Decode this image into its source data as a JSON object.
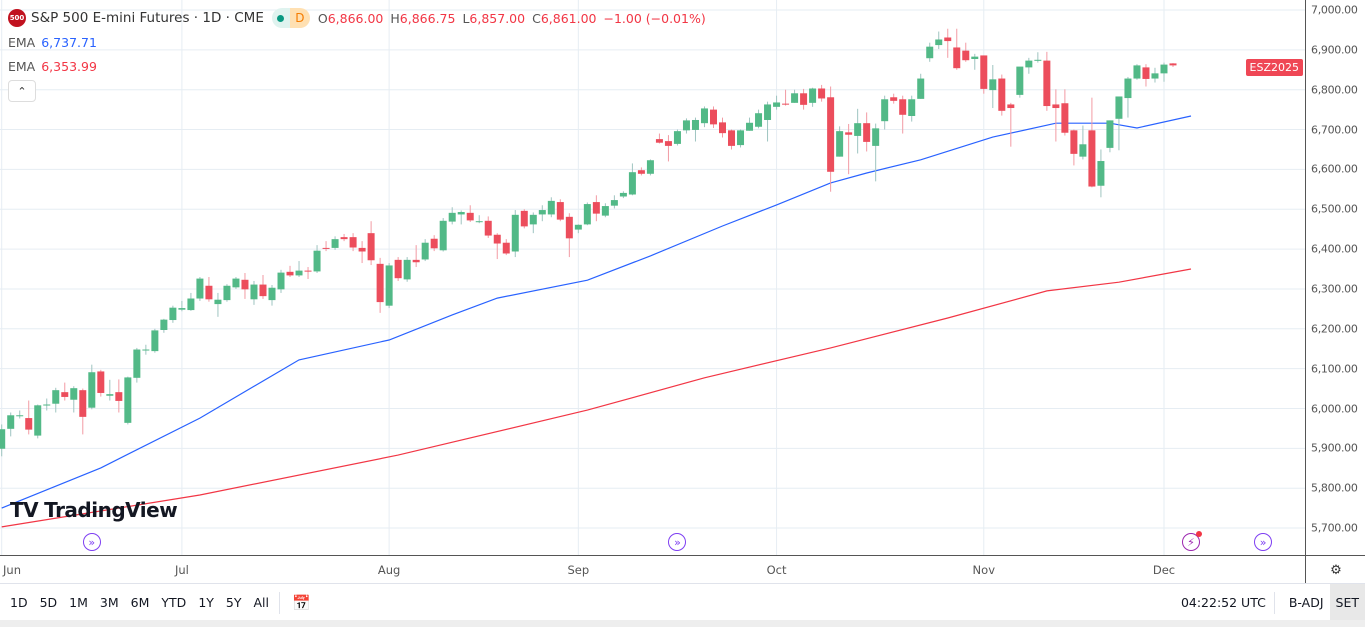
{
  "header": {
    "symbol_logo": "500",
    "title": "S&P 500 E-mini Futures · 1D · CME",
    "interval_badge": "D",
    "ohlc": {
      "o_label": "O",
      "o": "6,866.00",
      "h_label": "H",
      "h": "6,866.75",
      "l_label": "L",
      "l": "6,857.00",
      "c_label": "C",
      "c": "6,861.00",
      "change": "−1.00 (−0.01%)"
    }
  },
  "indicators": [
    {
      "label": "EMA",
      "value": "6,737.71",
      "color": "#2962ff"
    },
    {
      "label": "EMA",
      "value": "6,353.99",
      "color": "#f23645"
    }
  ],
  "collapse_icon": "chevron-up-icon",
  "symbol_tag": "ESZ2025",
  "logo_text": "TradingView",
  "colors": {
    "up": "#52b987",
    "down": "#ec4d5c",
    "up_wick": "#9ec4c0",
    "down_wick": "#f29aa3",
    "ema_fast": "#2962ff",
    "ema_slow": "#f23645",
    "grid": "#e6edf3"
  },
  "chart_data": {
    "type": "candlestick",
    "ylim": [
      5680,
      7020
    ],
    "y_ticks": [
      "7,000.00",
      "6,900.00",
      "6,800.00",
      "6,700.00",
      "6,600.00",
      "6,500.00",
      "6,400.00",
      "6,300.00",
      "6,200.00",
      "6,100.00",
      "6,000.00",
      "5,900.00",
      "5,800.00",
      "5,700.00"
    ],
    "y_tick_values": [
      7000,
      6900,
      6800,
      6700,
      6600,
      6500,
      6400,
      6300,
      6200,
      6100,
      6000,
      5900,
      5800,
      5700
    ],
    "x_ticks": [
      {
        "label": "Jun",
        "bar": 0
      },
      {
        "label": "Jul",
        "bar": 20
      },
      {
        "label": "Aug",
        "bar": 43
      },
      {
        "label": "Sep",
        "bar": 64
      },
      {
        "label": "Oct",
        "bar": 86
      },
      {
        "label": "Nov",
        "bar": 109
      },
      {
        "label": "Dec",
        "bar": 129
      }
    ],
    "grid": true,
    "candles_ohlc": [
      [
        5899,
        5960,
        5880,
        5948
      ],
      [
        5949,
        5990,
        5930,
        5983
      ],
      [
        5983,
        5995,
        5975,
        5983
      ],
      [
        5976,
        6020,
        5935,
        5947
      ],
      [
        5932,
        6010,
        5925,
        6008
      ],
      [
        6010,
        6025,
        5995,
        6010
      ],
      [
        6012,
        6052,
        5990,
        6046
      ],
      [
        6041,
        6065,
        6020,
        6029
      ],
      [
        6022,
        6056,
        5990,
        6051
      ],
      [
        6046,
        6050,
        5935,
        5979
      ],
      [
        6002,
        6110,
        5998,
        6091
      ],
      [
        6093,
        6097,
        6030,
        6039
      ],
      [
        6032,
        6072,
        6020,
        6036
      ],
      [
        6041,
        6073,
        5990,
        6019
      ],
      [
        5964,
        6080,
        5960,
        6078
      ],
      [
        6077,
        6152,
        6065,
        6148
      ],
      [
        6148,
        6160,
        6135,
        6148
      ],
      [
        6144,
        6200,
        6140,
        6196
      ],
      [
        6197,
        6225,
        6190,
        6223
      ],
      [
        6222,
        6258,
        6215,
        6253
      ],
      [
        6248,
        6270,
        6244,
        6252
      ],
      [
        6247,
        6290,
        6245,
        6276
      ],
      [
        6276,
        6330,
        6270,
        6326
      ],
      [
        6308,
        6330,
        6268,
        6274
      ],
      [
        6262,
        6290,
        6230,
        6273
      ],
      [
        6272,
        6312,
        6268,
        6308
      ],
      [
        6304,
        6330,
        6300,
        6326
      ],
      [
        6323,
        6340,
        6275,
        6299
      ],
      [
        6274,
        6320,
        6260,
        6311
      ],
      [
        6311,
        6335,
        6275,
        6282
      ],
      [
        6272,
        6310,
        6258,
        6303
      ],
      [
        6299,
        6348,
        6290,
        6341
      ],
      [
        6343,
        6358,
        6330,
        6334
      ],
      [
        6334,
        6370,
        6330,
        6346
      ],
      [
        6346,
        6355,
        6325,
        6345
      ],
      [
        6344,
        6410,
        6340,
        6396
      ],
      [
        6403,
        6420,
        6395,
        6401
      ],
      [
        6403,
        6432,
        6398,
        6425
      ],
      [
        6430,
        6438,
        6420,
        6425
      ],
      [
        6430,
        6440,
        6395,
        6404
      ],
      [
        6403,
        6420,
        6365,
        6394
      ],
      [
        6440,
        6470,
        6360,
        6372
      ],
      [
        6363,
        6378,
        6240,
        6267
      ],
      [
        6258,
        6365,
        6252,
        6359
      ],
      [
        6373,
        6380,
        6320,
        6327
      ],
      [
        6324,
        6380,
        6318,
        6373
      ],
      [
        6373,
        6410,
        6355,
        6367
      ],
      [
        6374,
        6425,
        6370,
        6416
      ],
      [
        6426,
        6435,
        6395,
        6402
      ],
      [
        6397,
        6478,
        6394,
        6471
      ],
      [
        6469,
        6505,
        6462,
        6491
      ],
      [
        6487,
        6497,
        6462,
        6493
      ],
      [
        6491,
        6510,
        6468,
        6472
      ],
      [
        6470,
        6485,
        6465,
        6470
      ],
      [
        6471,
        6482,
        6428,
        6434
      ],
      [
        6436,
        6440,
        6375,
        6414
      ],
      [
        6416,
        6425,
        6385,
        6389
      ],
      [
        6394,
        6498,
        6380,
        6486
      ],
      [
        6496,
        6500,
        6452,
        6457
      ],
      [
        6462,
        6492,
        6440,
        6486
      ],
      [
        6487,
        6510,
        6470,
        6498
      ],
      [
        6487,
        6530,
        6480,
        6521
      ],
      [
        6518,
        6525,
        6470,
        6474
      ],
      [
        6481,
        6490,
        6380,
        6427
      ],
      [
        6449,
        6462,
        6440,
        6461
      ],
      [
        6462,
        6517,
        6460,
        6513
      ],
      [
        6518,
        6535,
        6470,
        6489
      ],
      [
        6484,
        6515,
        6480,
        6508
      ],
      [
        6509,
        6535,
        6502,
        6523
      ],
      [
        6532,
        6545,
        6528,
        6541
      ],
      [
        6537,
        6615,
        6535,
        6593
      ],
      [
        6598,
        6605,
        6585,
        6589
      ],
      [
        6589,
        6625,
        6585,
        6623
      ],
      [
        6676,
        6690,
        6665,
        6667
      ],
      [
        6671,
        6686,
        6620,
        6659
      ],
      [
        6664,
        6700,
        6660,
        6696
      ],
      [
        6698,
        6728,
        6690,
        6723
      ],
      [
        6699,
        6730,
        6670,
        6724
      ],
      [
        6716,
        6758,
        6706,
        6753
      ],
      [
        6750,
        6758,
        6704,
        6713
      ],
      [
        6718,
        6730,
        6680,
        6691
      ],
      [
        6698,
        6700,
        6650,
        6659
      ],
      [
        6661,
        6700,
        6655,
        6698
      ],
      [
        6697,
        6730,
        6697,
        6717
      ],
      [
        6707,
        6750,
        6703,
        6741
      ],
      [
        6724,
        6770,
        6670,
        6763
      ],
      [
        6757,
        6785,
        6750,
        6768
      ],
      [
        6765,
        6800,
        6760,
        6764
      ],
      [
        6767,
        6800,
        6767,
        6791
      ],
      [
        6791,
        6802,
        6750,
        6762
      ],
      [
        6767,
        6805,
        6757,
        6803
      ],
      [
        6803,
        6812,
        6770,
        6778
      ],
      [
        6781,
        6808,
        6544,
        6594
      ],
      [
        6632,
        6708,
        6632,
        6696
      ],
      [
        6693,
        6714,
        6588,
        6687
      ],
      [
        6684,
        6752,
        6640,
        6716
      ],
      [
        6716,
        6743,
        6645,
        6669
      ],
      [
        6659,
        6715,
        6570,
        6703
      ],
      [
        6721,
        6785,
        6700,
        6776
      ],
      [
        6781,
        6790,
        6765,
        6772
      ],
      [
        6776,
        6785,
        6690,
        6737
      ],
      [
        6734,
        6785,
        6720,
        6776
      ],
      [
        6777,
        6840,
        6777,
        6828
      ],
      [
        6879,
        6918,
        6870,
        6908
      ],
      [
        6912,
        6946,
        6902,
        6926
      ],
      [
        6931,
        6953,
        6880,
        6922
      ],
      [
        6906,
        6953,
        6850,
        6854
      ],
      [
        6898,
        6918,
        6870,
        6874
      ],
      [
        6877,
        6890,
        6850,
        6883
      ],
      [
        6886,
        6886,
        6790,
        6802
      ],
      [
        6799,
        6862,
        6754,
        6826
      ],
      [
        6828,
        6838,
        6735,
        6747
      ],
      [
        6763,
        6767,
        6657,
        6754
      ],
      [
        6787,
        6825,
        6780,
        6858
      ],
      [
        6856,
        6880,
        6840,
        6873
      ],
      [
        6875,
        6894,
        6868,
        6875
      ],
      [
        6873,
        6895,
        6747,
        6759
      ],
      [
        6763,
        6801,
        6670,
        6754
      ],
      [
        6766,
        6801,
        6685,
        6692
      ],
      [
        6698,
        6700,
        6610,
        6639
      ],
      [
        6632,
        6710,
        6625,
        6663
      ],
      [
        6698,
        6780,
        6555,
        6557
      ],
      [
        6559,
        6650,
        6530,
        6621
      ],
      [
        6654,
        6723,
        6643,
        6723
      ],
      [
        6727,
        6780,
        6648,
        6783
      ],
      [
        6779,
        6832,
        6730,
        6828
      ],
      [
        6828,
        6864,
        6825,
        6861
      ],
      [
        6856,
        6864,
        6808,
        6827
      ],
      [
        6828,
        6855,
        6818,
        6841
      ],
      [
        6841,
        6868,
        6820,
        6863
      ],
      [
        6866,
        6866.75,
        6857,
        6861
      ]
    ],
    "ema_fast": {
      "label": "EMA",
      "last": 6737.71,
      "points": [
        [
          0,
          5750
        ],
        [
          11,
          5851
        ],
        [
          22,
          5976
        ],
        [
          33,
          6122
        ],
        [
          43,
          6172
        ],
        [
          50,
          6235
        ],
        [
          55,
          6277
        ],
        [
          65,
          6322
        ],
        [
          72,
          6383
        ],
        [
          80,
          6458
        ],
        [
          86,
          6511
        ],
        [
          92,
          6566
        ],
        [
          96,
          6591
        ],
        [
          102,
          6624
        ],
        [
          110,
          6681
        ],
        [
          117,
          6716
        ],
        [
          123,
          6716
        ],
        [
          126,
          6704
        ],
        [
          132,
          6734
        ]
      ]
    },
    "ema_slow": {
      "label": "EMA",
      "last": 6353.99,
      "points": [
        [
          0,
          5703
        ],
        [
          22,
          5783
        ],
        [
          44,
          5883
        ],
        [
          65,
          5996
        ],
        [
          78,
          6077
        ],
        [
          92,
          6152
        ],
        [
          105,
          6227
        ],
        [
          116,
          6295
        ],
        [
          124,
          6317
        ],
        [
          132,
          6350
        ]
      ]
    },
    "event_markers": [
      {
        "type": "split",
        "bar": 10
      },
      {
        "type": "split",
        "bar": 75
      },
      {
        "type": "dividend",
        "bar": 132
      },
      {
        "type": "split",
        "bar": 140
      }
    ]
  },
  "toolbar": {
    "ranges": [
      "1D",
      "5D",
      "1M",
      "3M",
      "6M",
      "YTD",
      "1Y",
      "5Y",
      "All"
    ],
    "date_range_icon": "calendar-goto-icon",
    "clock": "04:22:52 UTC",
    "adj": "B-ADJ",
    "session": "SET"
  },
  "settings_icon": "gear-icon"
}
